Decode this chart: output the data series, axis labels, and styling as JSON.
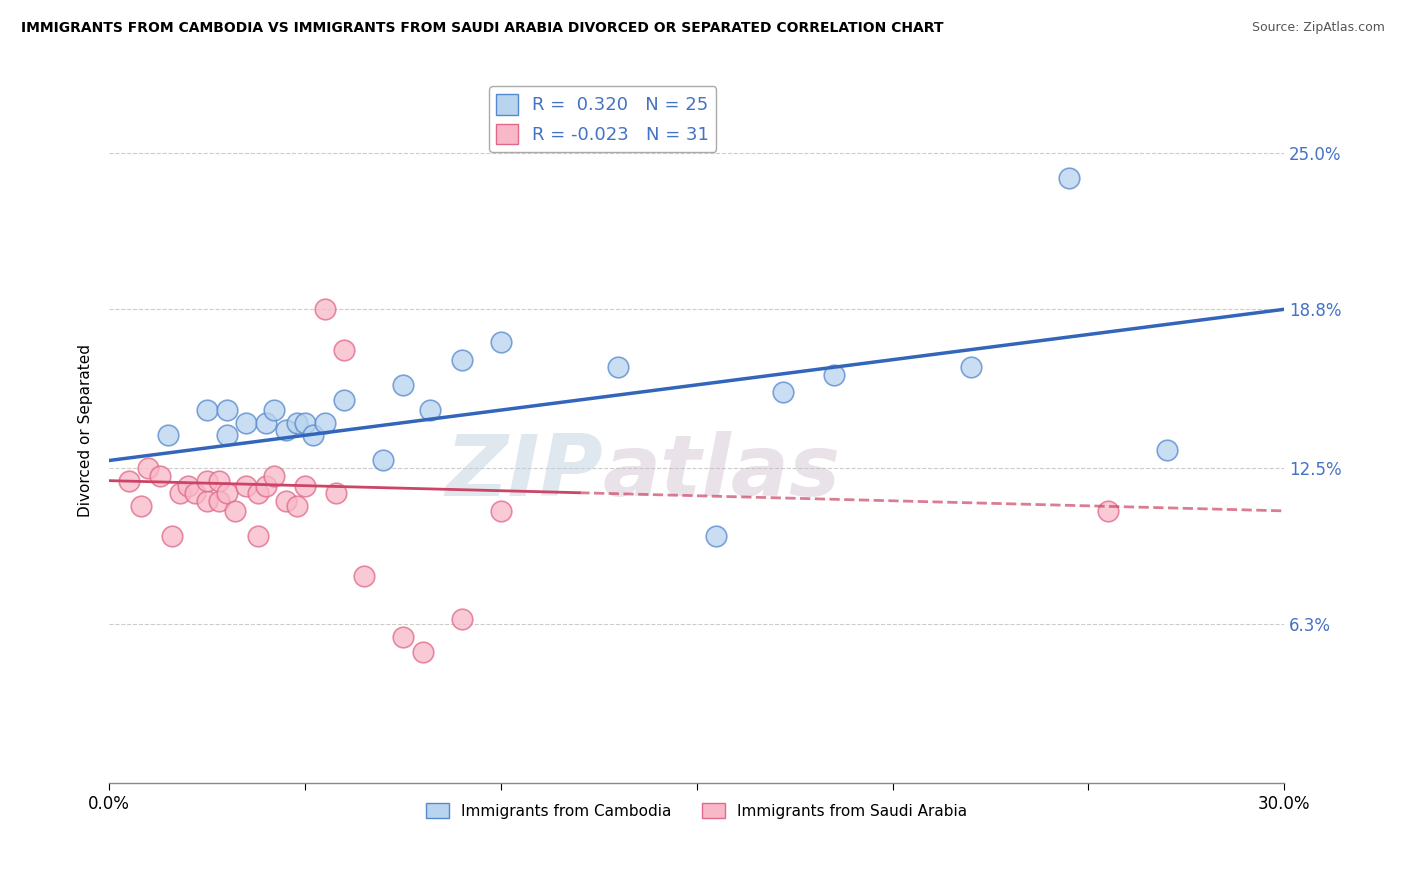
{
  "title": "IMMIGRANTS FROM CAMBODIA VS IMMIGRANTS FROM SAUDI ARABIA DIVORCED OR SEPARATED CORRELATION CHART",
  "source": "Source: ZipAtlas.com",
  "ylabel": "Divorced or Separated",
  "xlim": [
    0.0,
    0.3
  ],
  "ylim": [
    0.0,
    0.28
  ],
  "yticks": [
    0.063,
    0.125,
    0.188,
    0.25
  ],
  "ytick_labels": [
    "6.3%",
    "12.5%",
    "18.8%",
    "25.0%"
  ],
  "xtick_vals": [
    0.0,
    0.05,
    0.1,
    0.15,
    0.2,
    0.25,
    0.3
  ],
  "color_cambodia_fill": "#b8d4ee",
  "color_cambodia_edge": "#5588cc",
  "color_saudi_fill": "#f8b8c8",
  "color_saudi_edge": "#e06888",
  "color_line_cambodia": "#3366bb",
  "color_line_saudi": "#cc4466",
  "color_rhs_labels": "#4472c4",
  "watermark": "ZIPatlas",
  "legend_r1": "R =  0.320",
  "legend_n1": "N = 25",
  "legend_r2": "R = -0.023",
  "legend_n2": "N = 31",
  "cambodia_x": [
    0.015,
    0.025,
    0.03,
    0.03,
    0.035,
    0.04,
    0.042,
    0.045,
    0.048,
    0.05,
    0.052,
    0.055,
    0.06,
    0.07,
    0.075,
    0.082,
    0.09,
    0.1,
    0.13,
    0.155,
    0.172,
    0.185,
    0.22,
    0.245,
    0.27
  ],
  "cambodia_y": [
    0.138,
    0.148,
    0.138,
    0.148,
    0.143,
    0.143,
    0.148,
    0.14,
    0.143,
    0.143,
    0.138,
    0.143,
    0.152,
    0.128,
    0.158,
    0.148,
    0.168,
    0.175,
    0.165,
    0.098,
    0.155,
    0.162,
    0.165,
    0.24,
    0.132
  ],
  "saudi_x": [
    0.005,
    0.008,
    0.01,
    0.013,
    0.016,
    0.018,
    0.02,
    0.022,
    0.025,
    0.025,
    0.028,
    0.028,
    0.03,
    0.032,
    0.035,
    0.038,
    0.038,
    0.04,
    0.042,
    0.045,
    0.048,
    0.05,
    0.055,
    0.058,
    0.06,
    0.065,
    0.075,
    0.08,
    0.09,
    0.1,
    0.255
  ],
  "saudi_y": [
    0.12,
    0.11,
    0.125,
    0.122,
    0.098,
    0.115,
    0.118,
    0.115,
    0.112,
    0.12,
    0.112,
    0.12,
    0.115,
    0.108,
    0.118,
    0.115,
    0.098,
    0.118,
    0.122,
    0.112,
    0.11,
    0.118,
    0.188,
    0.115,
    0.172,
    0.082,
    0.058,
    0.052,
    0.065,
    0.108,
    0.108
  ],
  "blue_line_x0": 0.0,
  "blue_line_y0": 0.128,
  "blue_line_x1": 0.3,
  "blue_line_y1": 0.188,
  "pink_line_x0": 0.0,
  "pink_line_y0": 0.12,
  "pink_line_x1": 0.3,
  "pink_line_y1": 0.108
}
